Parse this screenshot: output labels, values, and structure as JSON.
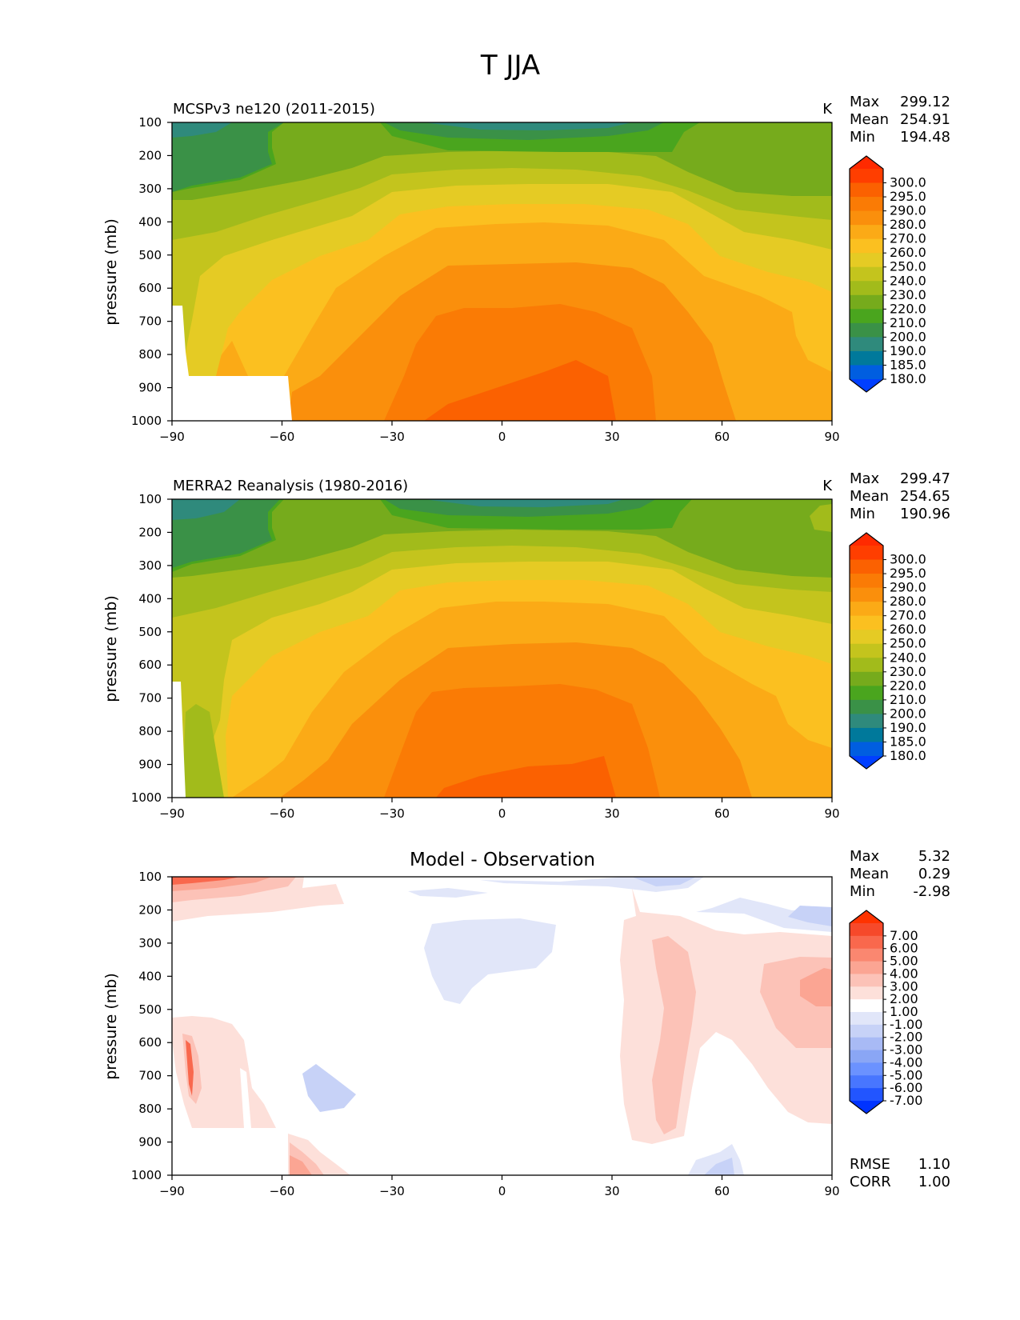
{
  "figure_title": "T JJA",
  "colors": {
    "abs_levels": [
      "#003fff",
      "#005ee0",
      "#00799b",
      "#2f8a7c",
      "#3a9147",
      "#4aa51e",
      "#76ab1c",
      "#a2bb1b",
      "#c4c41d",
      "#e5cb24",
      "#fbc020",
      "#fbaa16",
      "#fa8f0c",
      "#fa7b05",
      "#fb6101",
      "#ff3e00",
      "#ff2a00"
    ],
    "diff_levels": [
      "#0033ff",
      "#2255ff",
      "#4876ff",
      "#6b92ff",
      "#8aa6f5",
      "#a8baf5",
      "#c7d2f7",
      "#e1e6f9",
      "#ffffff",
      "#fde0da",
      "#fcc2b7",
      "#fba593",
      "#fa8770",
      "#f9684d",
      "#f6492a",
      "#ff3300"
    ]
  },
  "chart_data": [
    {
      "type": "contour",
      "name": "panel-model",
      "title_left": "MCSPv3 ne120 (2011-2015)",
      "title_right": "K",
      "ylabel": "pressure (mb)",
      "xlim": [
        -90,
        90
      ],
      "ylim": [
        1000,
        100
      ],
      "xticks": [
        "−90",
        "−60",
        "−30",
        "0",
        "30",
        "60",
        "90"
      ],
      "xtick_values": [
        -90,
        -60,
        -30,
        0,
        30,
        60,
        90
      ],
      "yticks": [
        "100",
        "200",
        "300",
        "400",
        "500",
        "600",
        "700",
        "800",
        "900",
        "1000"
      ],
      "ytick_values": [
        100,
        200,
        300,
        400,
        500,
        600,
        700,
        800,
        900,
        1000
      ],
      "stats": [
        {
          "label": "Max",
          "value": "299.12"
        },
        {
          "label": "Mean",
          "value": "254.91"
        },
        {
          "label": "Min",
          "value": "194.48"
        }
      ],
      "colorbar_labels": [
        "300.0",
        "295.0",
        "290.0",
        "280.0",
        "270.0",
        "260.0",
        "250.0",
        "240.0",
        "230.0",
        "220.0",
        "210.0",
        "200.0",
        "190.0",
        "185.0",
        "180.0"
      ],
      "colorbar_levels": [
        180,
        185,
        190,
        200,
        210,
        220,
        230,
        240,
        250,
        260,
        270,
        280,
        290,
        295,
        300
      ],
      "max": 299.12,
      "mean": 254.91,
      "min": 194.48
    },
    {
      "type": "contour",
      "name": "panel-obs",
      "title_left": "MERRA2 Reanalysis (1980-2016)",
      "title_right": "K",
      "ylabel": "pressure (mb)",
      "xlim": [
        -90,
        90
      ],
      "ylim": [
        1000,
        100
      ],
      "xticks": [
        "−90",
        "−60",
        "−30",
        "0",
        "30",
        "60",
        "90"
      ],
      "xtick_values": [
        -90,
        -60,
        -30,
        0,
        30,
        60,
        90
      ],
      "yticks": [
        "100",
        "200",
        "300",
        "400",
        "500",
        "600",
        "700",
        "800",
        "900",
        "1000"
      ],
      "ytick_values": [
        100,
        200,
        300,
        400,
        500,
        600,
        700,
        800,
        900,
        1000
      ],
      "stats": [
        {
          "label": "Max",
          "value": "299.47"
        },
        {
          "label": "Mean",
          "value": "254.65"
        },
        {
          "label": "Min",
          "value": "190.96"
        }
      ],
      "colorbar_labels": [
        "300.0",
        "295.0",
        "290.0",
        "280.0",
        "270.0",
        "260.0",
        "250.0",
        "240.0",
        "230.0",
        "220.0",
        "210.0",
        "200.0",
        "190.0",
        "185.0",
        "180.0"
      ],
      "colorbar_levels": [
        180,
        185,
        190,
        200,
        210,
        220,
        230,
        240,
        250,
        260,
        270,
        280,
        290,
        295,
        300
      ],
      "max": 299.47,
      "mean": 254.65,
      "min": 190.96
    },
    {
      "type": "contour",
      "name": "panel-diff",
      "title_center": "Model - Observation",
      "ylabel": "pressure (mb)",
      "xlim": [
        -90,
        90
      ],
      "ylim": [
        1000,
        100
      ],
      "xticks": [
        "−90",
        "−60",
        "−30",
        "0",
        "30",
        "60",
        "90"
      ],
      "xtick_values": [
        -90,
        -60,
        -30,
        0,
        30,
        60,
        90
      ],
      "yticks": [
        "100",
        "200",
        "300",
        "400",
        "500",
        "600",
        "700",
        "800",
        "900",
        "1000"
      ],
      "ytick_values": [
        100,
        200,
        300,
        400,
        500,
        600,
        700,
        800,
        900,
        1000
      ],
      "stats": [
        {
          "label": "Max",
          "value": "5.32"
        },
        {
          "label": "Mean",
          "value": "0.29"
        },
        {
          "label": "Min",
          "value": "-2.98"
        }
      ],
      "colorbar_labels": [
        "7.00",
        "6.00",
        "5.00",
        "4.00",
        "3.00",
        "2.00",
        "1.00",
        "-1.00",
        "-2.00",
        "-3.00",
        "-4.00",
        "-5.00",
        "-6.00",
        "-7.00"
      ],
      "colorbar_levels": [
        -7,
        -6,
        -5,
        -4,
        -3,
        -2,
        -1,
        1,
        2,
        3,
        4,
        5,
        6,
        7
      ],
      "metrics": [
        {
          "label": "RMSE",
          "value": "1.10"
        },
        {
          "label": "CORR",
          "value": "1.00"
        }
      ],
      "max": 5.32,
      "mean": 0.29,
      "min": -2.98,
      "rmse": 1.1,
      "corr": 1.0
    }
  ]
}
